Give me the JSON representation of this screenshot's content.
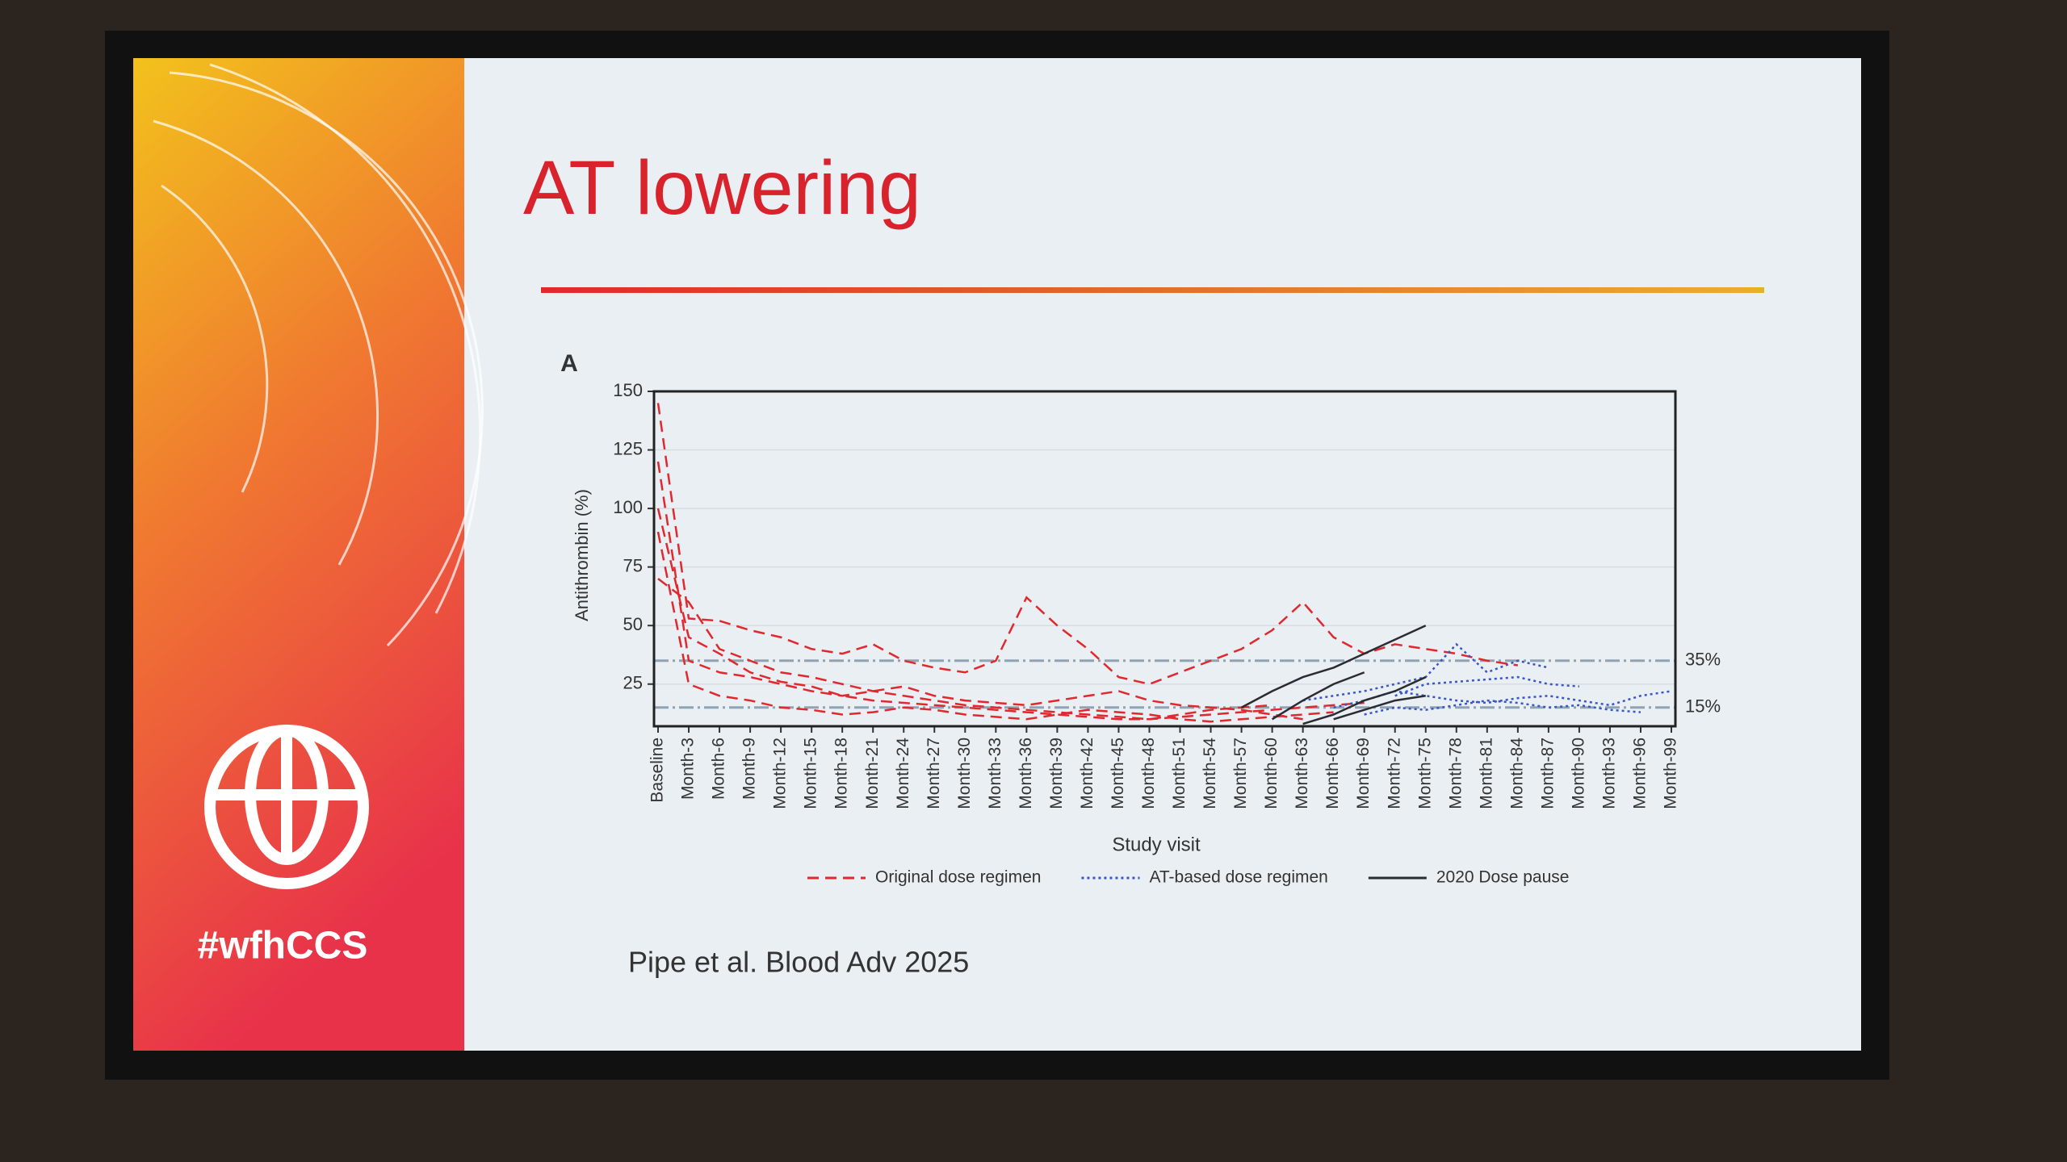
{
  "slide": {
    "title": "AT lowering",
    "citation": "Pipe et al. Blood Adv 2025",
    "hashtag": "#wfhCCS"
  },
  "chart_data": {
    "type": "line",
    "panel_label": "A",
    "xlabel": "Study visit",
    "ylabel": "Antithrombin (%)",
    "categories": [
      "Baseline",
      "Month-3",
      "Month-6",
      "Month-9",
      "Month-12",
      "Month-15",
      "Month-18",
      "Month-21",
      "Month-24",
      "Month-27",
      "Month-30",
      "Month-33",
      "Month-36",
      "Month-39",
      "Month-42",
      "Month-45",
      "Month-48",
      "Month-51",
      "Month-54",
      "Month-57",
      "Month-60",
      "Month-63",
      "Month-66",
      "Month-69",
      "Month-72",
      "Month-75",
      "Month-78",
      "Month-81",
      "Month-84",
      "Month-87",
      "Month-90",
      "Month-93",
      "Month-96",
      "Month-99"
    ],
    "ylim": [
      7,
      150
    ],
    "yticks": [
      25,
      50,
      75,
      100,
      125,
      150
    ],
    "grid": true,
    "reference_lines": [
      {
        "value": 35,
        "label": "35%",
        "color": "#8fa3b3"
      },
      {
        "value": 15,
        "label": "15%",
        "color": "#8fa3b3"
      }
    ],
    "series": [
      {
        "name": "Original dose regimen",
        "color": "#e0282e",
        "dash": "dashed",
        "lines": [
          [
            145,
            53,
            52,
            48,
            45,
            40,
            38,
            42,
            35,
            32,
            30,
            35,
            62,
            50,
            40,
            28,
            25,
            30,
            35,
            40,
            48,
            60,
            45,
            38,
            42,
            40,
            38,
            35,
            33,
            null,
            null,
            null,
            null,
            null
          ],
          [
            120,
            35,
            30,
            28,
            25,
            22,
            20,
            22,
            24,
            20,
            18,
            17,
            16,
            18,
            20,
            22,
            18,
            16,
            15,
            14,
            12,
            10,
            null,
            null,
            null,
            null,
            null,
            null,
            null,
            null,
            null,
            null,
            null,
            null
          ],
          [
            90,
            25,
            20,
            18,
            15,
            14,
            12,
            13,
            15,
            14,
            12,
            11,
            10,
            12,
            14,
            13,
            12,
            10,
            9,
            10,
            11,
            12,
            13,
            null,
            null,
            null,
            null,
            null,
            null,
            null,
            null,
            null,
            null,
            null
          ],
          [
            70,
            60,
            40,
            35,
            30,
            28,
            25,
            22,
            20,
            18,
            16,
            15,
            14,
            13,
            12,
            11,
            10,
            12,
            14,
            15,
            16,
            null,
            null,
            null,
            null,
            null,
            null,
            null,
            null,
            null,
            null,
            null,
            null,
            null
          ],
          [
            100,
            45,
            38,
            30,
            26,
            24,
            20,
            18,
            17,
            16,
            15,
            14,
            13,
            12,
            11,
            10,
            10,
            11,
            12,
            13,
            14,
            15,
            16,
            17,
            null,
            null,
            null,
            null,
            null,
            null,
            null,
            null,
            null,
            null
          ]
        ]
      },
      {
        "name": "AT-based dose regimen",
        "color": "#3a55c8",
        "dash": "dotted",
        "lines": [
          [
            null,
            null,
            null,
            null,
            null,
            null,
            null,
            null,
            null,
            null,
            null,
            null,
            null,
            null,
            null,
            null,
            null,
            null,
            null,
            null,
            null,
            18,
            20,
            22,
            25,
            28,
            42,
            30,
            35,
            32,
            null,
            null,
            null,
            null
          ],
          [
            null,
            null,
            null,
            null,
            null,
            null,
            null,
            null,
            null,
            null,
            null,
            null,
            null,
            null,
            null,
            null,
            null,
            null,
            null,
            null,
            null,
            null,
            15,
            18,
            22,
            20,
            18,
            17,
            19,
            20,
            18,
            16,
            20,
            22
          ],
          [
            null,
            null,
            null,
            null,
            null,
            null,
            null,
            null,
            null,
            null,
            null,
            null,
            null,
            null,
            null,
            null,
            null,
            null,
            null,
            null,
            null,
            null,
            null,
            12,
            15,
            14,
            16,
            18,
            17,
            15,
            16,
            14,
            13,
            null
          ],
          [
            null,
            null,
            null,
            null,
            null,
            null,
            null,
            null,
            null,
            null,
            null,
            null,
            null,
            null,
            null,
            null,
            null,
            null,
            null,
            null,
            null,
            null,
            null,
            null,
            20,
            25,
            26,
            27,
            28,
            25,
            24,
            null,
            null,
            null
          ]
        ]
      },
      {
        "name": "2020 Dose pause",
        "color": "#2b2b33",
        "dash": "solid",
        "lines": [
          [
            null,
            null,
            null,
            null,
            null,
            null,
            null,
            null,
            null,
            null,
            null,
            null,
            null,
            null,
            null,
            null,
            null,
            null,
            null,
            15,
            22,
            28,
            32,
            38,
            44,
            50,
            null,
            null,
            null,
            null,
            null,
            null,
            null,
            null
          ],
          [
            null,
            null,
            null,
            null,
            null,
            null,
            null,
            null,
            null,
            null,
            null,
            null,
            null,
            null,
            null,
            null,
            null,
            null,
            null,
            null,
            10,
            18,
            25,
            30,
            null,
            null,
            null,
            null,
            null,
            null,
            null,
            null,
            null,
            null
          ],
          [
            null,
            null,
            null,
            null,
            null,
            null,
            null,
            null,
            null,
            null,
            null,
            null,
            null,
            null,
            null,
            null,
            null,
            null,
            null,
            null,
            null,
            8,
            12,
            18,
            22,
            28,
            null,
            null,
            null,
            null,
            null,
            null,
            null,
            null
          ],
          [
            null,
            null,
            null,
            null,
            null,
            null,
            null,
            null,
            null,
            null,
            null,
            null,
            null,
            null,
            null,
            null,
            null,
            null,
            null,
            null,
            null,
            null,
            10,
            14,
            18,
            20,
            null,
            null,
            null,
            null,
            null,
            null,
            null,
            null
          ]
        ]
      }
    ]
  }
}
